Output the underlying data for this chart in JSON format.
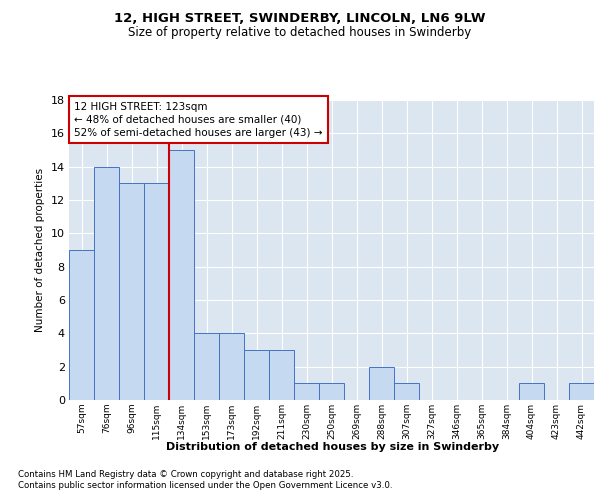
{
  "title1": "12, HIGH STREET, SWINDERBY, LINCOLN, LN6 9LW",
  "title2": "Size of property relative to detached houses in Swinderby",
  "xlabel": "Distribution of detached houses by size in Swinderby",
  "ylabel": "Number of detached properties",
  "categories": [
    "57sqm",
    "76sqm",
    "96sqm",
    "115sqm",
    "134sqm",
    "153sqm",
    "173sqm",
    "192sqm",
    "211sqm",
    "230sqm",
    "250sqm",
    "269sqm",
    "288sqm",
    "307sqm",
    "327sqm",
    "346sqm",
    "365sqm",
    "384sqm",
    "404sqm",
    "423sqm",
    "442sqm"
  ],
  "values": [
    9,
    14,
    13,
    13,
    15,
    4,
    4,
    3,
    3,
    1,
    1,
    0,
    2,
    1,
    0,
    0,
    0,
    0,
    1,
    0,
    1
  ],
  "bar_color": "#c5d9f0",
  "bar_edge_color": "#4472c4",
  "background_color": "#dce6f1",
  "grid_color": "#ffffff",
  "fig_background": "#ffffff",
  "redline_index": 3.5,
  "annotation_text": "12 HIGH STREET: 123sqm\n← 48% of detached houses are smaller (40)\n52% of semi-detached houses are larger (43) →",
  "annotation_box_color": "#ffffff",
  "annotation_box_edge": "#cc0000",
  "ylim": [
    0,
    18
  ],
  "yticks": [
    0,
    2,
    4,
    6,
    8,
    10,
    12,
    14,
    16,
    18
  ],
  "footnote1": "Contains HM Land Registry data © Crown copyright and database right 2025.",
  "footnote2": "Contains public sector information licensed under the Open Government Licence v3.0."
}
